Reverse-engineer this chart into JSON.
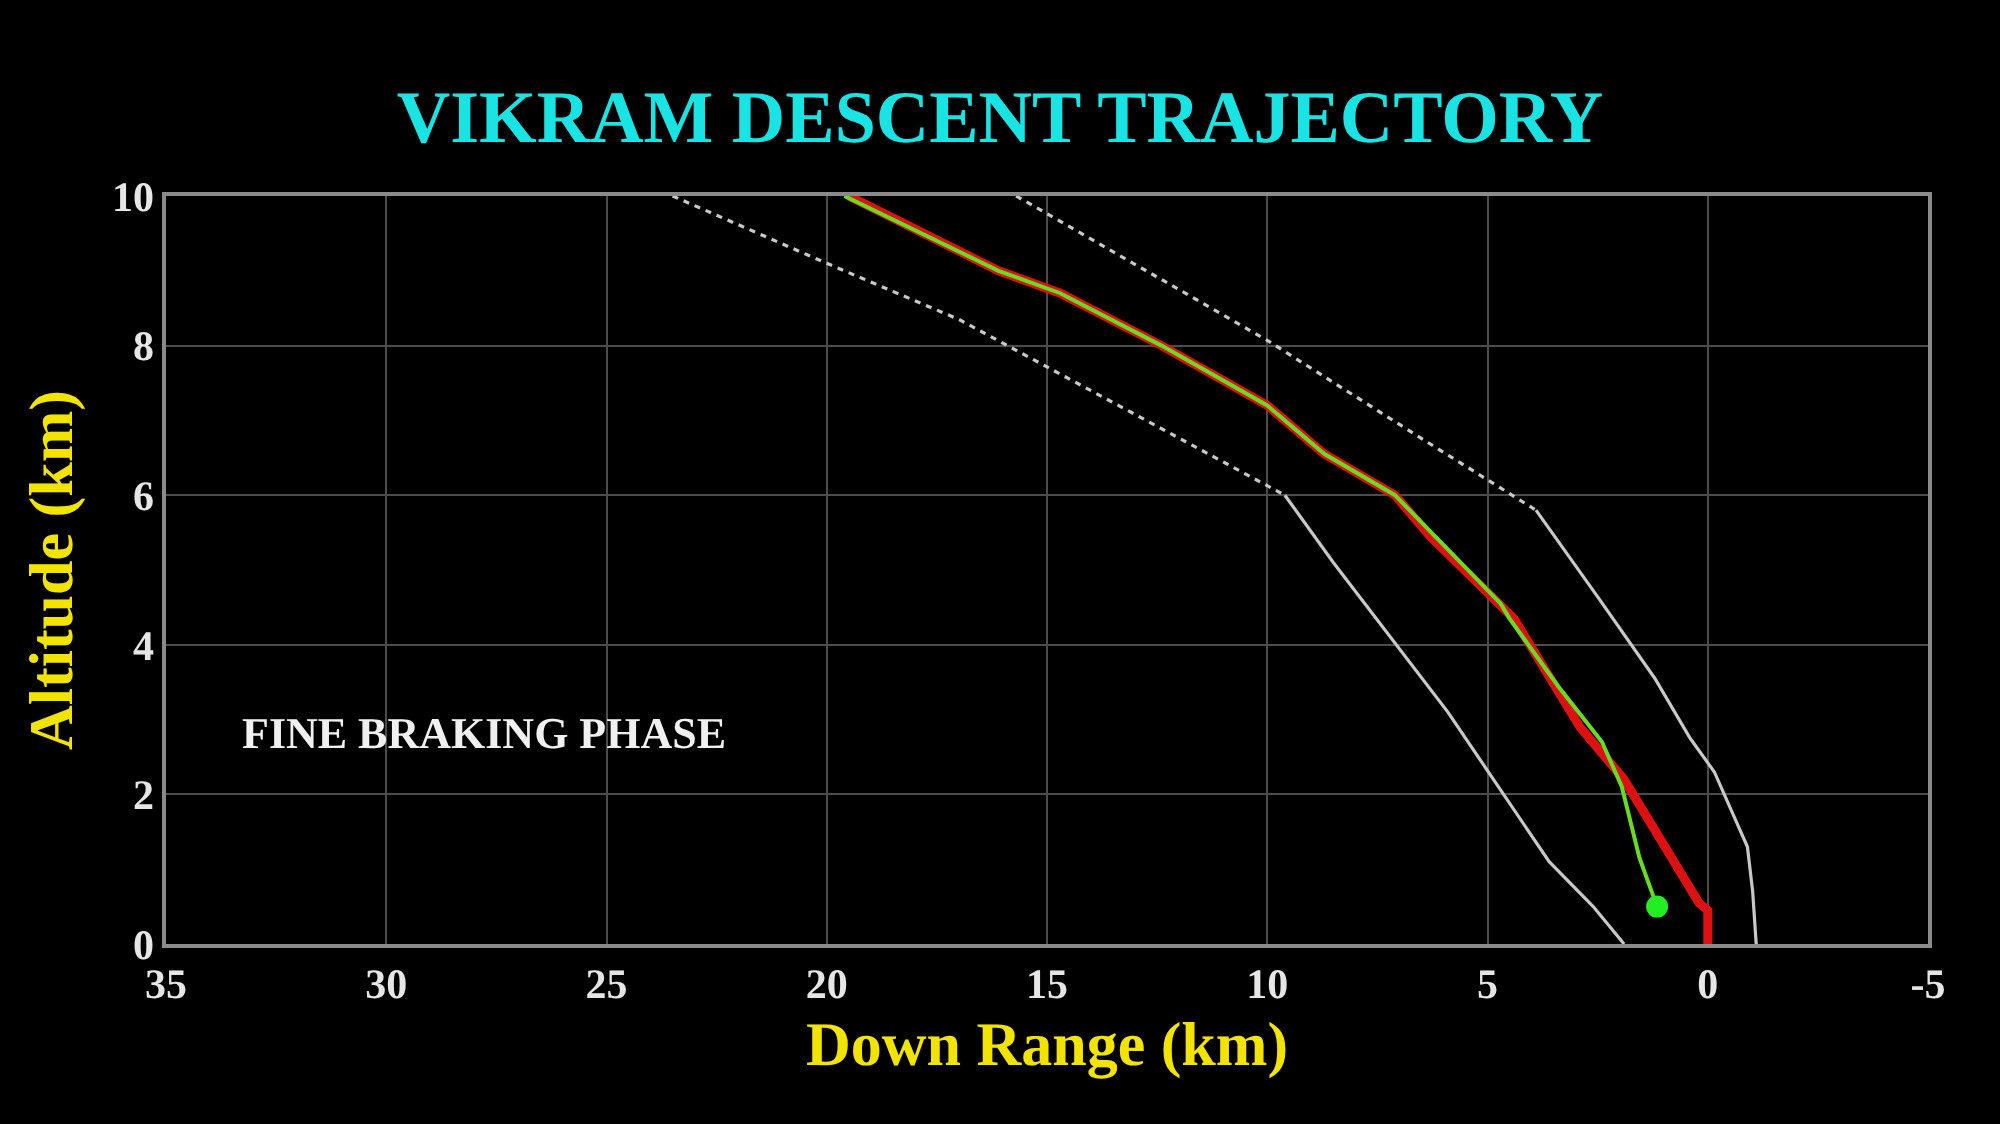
{
  "chart_data": {
    "type": "line",
    "title": "VIKRAM DESCENT TRAJECTORY",
    "xlabel": "Down Range (km)",
    "ylabel": "Altitude (km)",
    "annotations": [
      "FINE BRAKING PHASE"
    ],
    "xlim": [
      35,
      -5
    ],
    "xticks": [
      35,
      30,
      25,
      20,
      15,
      10,
      5,
      0,
      -5
    ],
    "ylim": [
      0,
      10
    ],
    "yticks": [
      0,
      2,
      4,
      6,
      8,
      10
    ],
    "grid": true,
    "series": [
      {
        "color": "#c8c8c8",
        "line_style": "dotted",
        "x": [
          23.5,
          20,
          17,
          9.6
        ],
        "values": [
          10,
          9.1,
          8.35,
          6.0
        ]
      },
      {
        "color": "#c8c8c8",
        "line_style": "solid",
        "x": [
          9.6,
          8.5,
          5.9,
          3.6,
          2.6,
          1.9
        ],
        "values": [
          6.0,
          5.1,
          3.1,
          1.1,
          0.5,
          0
        ]
      },
      {
        "color": "#c8c8c8",
        "line_style": "dotted",
        "x": [
          15.7,
          10,
          6.45,
          3.9
        ],
        "values": [
          10,
          8.07,
          6.74,
          5.8
        ]
      },
      {
        "color": "#c8c8c8",
        "line_style": "solid",
        "x": [
          3.9,
          2.45,
          1.2,
          0.4,
          -0.15,
          -0.6,
          -0.9,
          -1.02,
          -1.1
        ],
        "values": [
          5.8,
          4.6,
          3.55,
          2.75,
          2.3,
          1.7,
          1.3,
          0.7,
          0
        ]
      },
      {
        "color": "#dd1111",
        "line_style": "solid",
        "x": [
          19.5,
          16.1,
          14.7,
          12.4,
          10,
          8.7,
          7.1,
          6.3,
          4.4,
          2.9,
          1.9,
          0.2,
          0,
          0
        ],
        "values": [
          10,
          9,
          8.7,
          8,
          7.2,
          6.55,
          6,
          5.45,
          4.35,
          2.9,
          2.2,
          0.55,
          0.45,
          0
        ]
      },
      {
        "color": "#66dd22",
        "line_style": "solid",
        "x": [
          19.6,
          16.1,
          14.7,
          12.4,
          10,
          8.7,
          7.1,
          4.7,
          4.5,
          3.4,
          2.4,
          1.95,
          1.55,
          1.15
        ],
        "values": [
          10,
          9,
          8.7,
          8,
          7.2,
          6.55,
          6,
          4.55,
          4.35,
          3.45,
          2.7,
          2.1,
          1.15,
          0.5
        ]
      },
      {
        "type": "scatter",
        "marker": "circle",
        "color": "#22ee22",
        "x": [
          1.15
        ],
        "values": [
          0.5
        ]
      }
    ]
  }
}
